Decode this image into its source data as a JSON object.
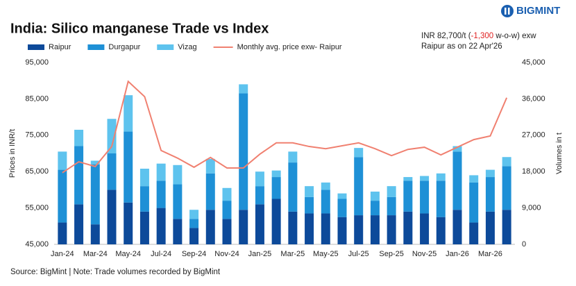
{
  "logo": "BIGMINT",
  "chart_data": {
    "type": "combo",
    "title": "India: Silico manganese Trade vs Index",
    "annotation": [
      "INR 82,700/t (",
      "-1,300",
      " w-o-w) exw",
      "Raipur as on 22 Apr'26"
    ],
    "y_label": "Prices in INR/t",
    "y2_label": "Volumes in t",
    "source": "Source: BigMint | Note: Trade volumes recorded by BigMint",
    "categories": [
      "Jan-24",
      null,
      "Mar-24",
      null,
      "May-24",
      null,
      "Jul-24",
      null,
      "Sep-24",
      null,
      "Nov-24",
      null,
      "Jan-25",
      null,
      "Mar-25",
      null,
      "May-25",
      null,
      "Jul-25",
      null,
      "Sep-25",
      null,
      "Nov-25",
      null,
      "Jan-26",
      null,
      "Mar-26",
      null
    ],
    "series": [
      {
        "name": "Raipur",
        "type": "bar",
        "axis": "y2",
        "color": "#0d4a9a",
        "values": [
          5400,
          9900,
          4950,
          13500,
          10350,
          8100,
          9000,
          6300,
          4050,
          8550,
          6300,
          8550,
          9900,
          11250,
          8100,
          7650,
          7650,
          6750,
          7200,
          7200,
          7200,
          8100,
          7650,
          6750,
          8550,
          5400,
          8100,
          8550
        ]
      },
      {
        "name": "Durgapur",
        "type": "bar",
        "axis": "y2",
        "color": "#1e90d6",
        "values": [
          13050,
          14400,
          14850,
          9000,
          17550,
          6300,
          6750,
          8550,
          2250,
          9000,
          4500,
          28800,
          4500,
          5400,
          12150,
          4050,
          5850,
          4500,
          14400,
          3600,
          4500,
          7650,
          8100,
          9000,
          14400,
          9900,
          8550,
          10800
        ]
      },
      {
        "name": "Vizag",
        "type": "bar",
        "axis": "y2",
        "color": "#5ec3ee",
        "values": [
          4500,
          4050,
          900,
          8550,
          9000,
          4320,
          4230,
          4770,
          2250,
          3600,
          3150,
          2250,
          3600,
          1620,
          2700,
          2700,
          1800,
          1350,
          2250,
          2250,
          2700,
          900,
          1170,
          1800,
          1350,
          1800,
          1800,
          2250
        ]
      },
      {
        "name": "Monthly avg. price exw- Raipur",
        "type": "line",
        "axis": "y",
        "color": "#f08070",
        "values": [
          64700,
          67700,
          66400,
          71900,
          89800,
          85600,
          70800,
          68700,
          66200,
          68900,
          66000,
          66000,
          69800,
          72900,
          72900,
          71900,
          71300,
          72100,
          72900,
          71300,
          69400,
          71100,
          71700,
          69600,
          71700,
          73800,
          74800,
          85300
        ]
      }
    ],
    "ylim": [
      45000,
      95000
    ],
    "yticks": [
      {
        "value": 45000,
        "label": "45,000"
      },
      {
        "value": 55000,
        "label": "55,000"
      },
      {
        "value": 65000,
        "label": "65,000"
      },
      {
        "value": 75000,
        "label": "75,000"
      },
      {
        "value": 85000,
        "label": "85,000"
      },
      {
        "value": 95000,
        "label": "95,000"
      }
    ],
    "y2lim": [
      0,
      45000
    ],
    "y2ticks": [
      0,
      {
        "value": 9000,
        "label": "9,000"
      },
      {
        "value": 18000,
        "label": "18,000"
      },
      {
        "value": 27000,
        "label": "27,000"
      },
      {
        "value": 36000,
        "label": "36,000"
      },
      {
        "value": 45000,
        "label": "45,000"
      }
    ],
    "annotation_highlight_color": "#e02020",
    "grid": false
  }
}
